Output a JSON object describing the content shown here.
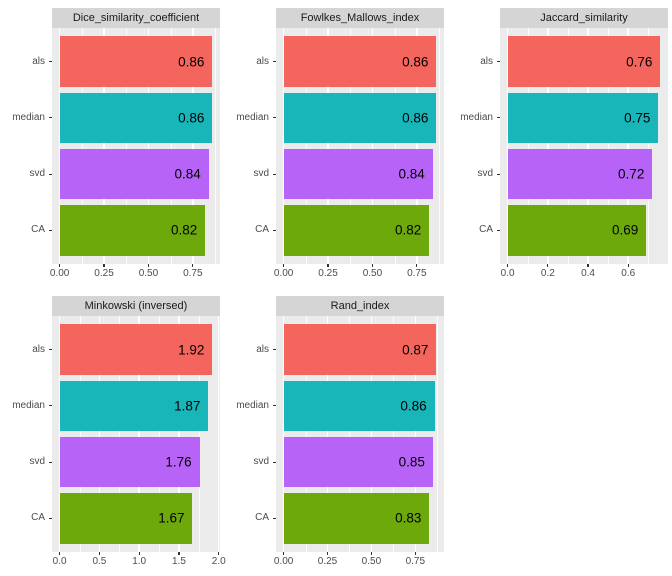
{
  "style": {
    "background": "#FFFFFF",
    "panel_bg": "#EBEBEB",
    "strip_bg": "#D5D5D5",
    "grid_color": "#FFFFFF",
    "axis_text_color": "#4D4D4D",
    "tick_color": "#333333",
    "strip_text_color": "#1A1A1A",
    "bar_label_color": "#000000"
  },
  "category_colors": {
    "als": "#F4655E",
    "median": "#18B5B9",
    "svd": "#B863F8",
    "CA": "#6EA90C"
  },
  "chart_data": [
    {
      "type": "bar",
      "orientation": "horizontal",
      "title": "Dice_similarity_coefficient",
      "categories": [
        "als",
        "median",
        "svd",
        "CA"
      ],
      "values": [
        0.86,
        0.86,
        0.84,
        0.82
      ],
      "value_labels": [
        "0.86",
        "0.86",
        "0.84",
        "0.82"
      ],
      "x_ticks": [
        0,
        0.25,
        0.5,
        0.75
      ],
      "x_tick_labels": [
        "0.00",
        "0.25",
        "0.50",
        "0.75"
      ],
      "x_minor_ticks": [
        0.125,
        0.375,
        0.625,
        0.875
      ],
      "x_max_data": 0.86,
      "x_expansion_mult": 0.05,
      "grid": true,
      "legend_position": "none",
      "facet_row": 0,
      "facet_col": 0
    },
    {
      "type": "bar",
      "orientation": "horizontal",
      "title": "Fowlkes_Mallows_index",
      "categories": [
        "als",
        "median",
        "svd",
        "CA"
      ],
      "values": [
        0.86,
        0.86,
        0.84,
        0.82
      ],
      "value_labels": [
        "0.86",
        "0.86",
        "0.84",
        "0.82"
      ],
      "x_ticks": [
        0,
        0.25,
        0.5,
        0.75
      ],
      "x_tick_labels": [
        "0.00",
        "0.25",
        "0.50",
        "0.75"
      ],
      "x_minor_ticks": [
        0.125,
        0.375,
        0.625,
        0.875
      ],
      "x_max_data": 0.86,
      "x_expansion_mult": 0.05,
      "grid": true,
      "legend_position": "none",
      "facet_row": 0,
      "facet_col": 1
    },
    {
      "type": "bar",
      "orientation": "horizontal",
      "title": "Jaccard_similarity",
      "categories": [
        "als",
        "median",
        "svd",
        "CA"
      ],
      "values": [
        0.76,
        0.75,
        0.72,
        0.69
      ],
      "value_labels": [
        "0.76",
        "0.75",
        "0.72",
        "0.69"
      ],
      "x_ticks": [
        0,
        0.2,
        0.4,
        0.6
      ],
      "x_tick_labels": [
        "0.0",
        "0.2",
        "0.4",
        "0.6"
      ],
      "x_minor_ticks": [
        0.1,
        0.3,
        0.5,
        0.7
      ],
      "x_max_data": 0.76,
      "x_expansion_mult": 0.05,
      "grid": true,
      "legend_position": "none",
      "facet_row": 0,
      "facet_col": 2
    },
    {
      "type": "bar",
      "orientation": "horizontal",
      "title": "Minkowski (inversed)",
      "categories": [
        "als",
        "median",
        "svd",
        "CA"
      ],
      "values": [
        1.92,
        1.87,
        1.76,
        1.67
      ],
      "value_labels": [
        "1.92",
        "1.87",
        "1.76",
        "1.67"
      ],
      "x_ticks": [
        0,
        0.5,
        1,
        1.5,
        2
      ],
      "x_tick_labels": [
        "0.0",
        "0.5",
        "1.0",
        "1.5",
        "2.0"
      ],
      "x_minor_ticks": [
        0.25,
        0.75,
        1.25,
        1.75
      ],
      "x_max_data": 1.92,
      "x_expansion_mult": 0.05,
      "grid": true,
      "legend_position": "none",
      "facet_row": 1,
      "facet_col": 0
    },
    {
      "type": "bar",
      "orientation": "horizontal",
      "title": "Rand_index",
      "categories": [
        "als",
        "median",
        "svd",
        "CA"
      ],
      "values": [
        0.87,
        0.86,
        0.85,
        0.83
      ],
      "value_labels": [
        "0.87",
        "0.86",
        "0.85",
        "0.83"
      ],
      "x_ticks": [
        0,
        0.25,
        0.5,
        0.75
      ],
      "x_tick_labels": [
        "0.00",
        "0.25",
        "0.50",
        "0.75"
      ],
      "x_minor_ticks": [
        0.125,
        0.375,
        0.625,
        0.875
      ],
      "x_max_data": 0.87,
      "x_expansion_mult": 0.05,
      "grid": true,
      "legend_position": "none",
      "facet_row": 1,
      "facet_col": 1
    }
  ]
}
